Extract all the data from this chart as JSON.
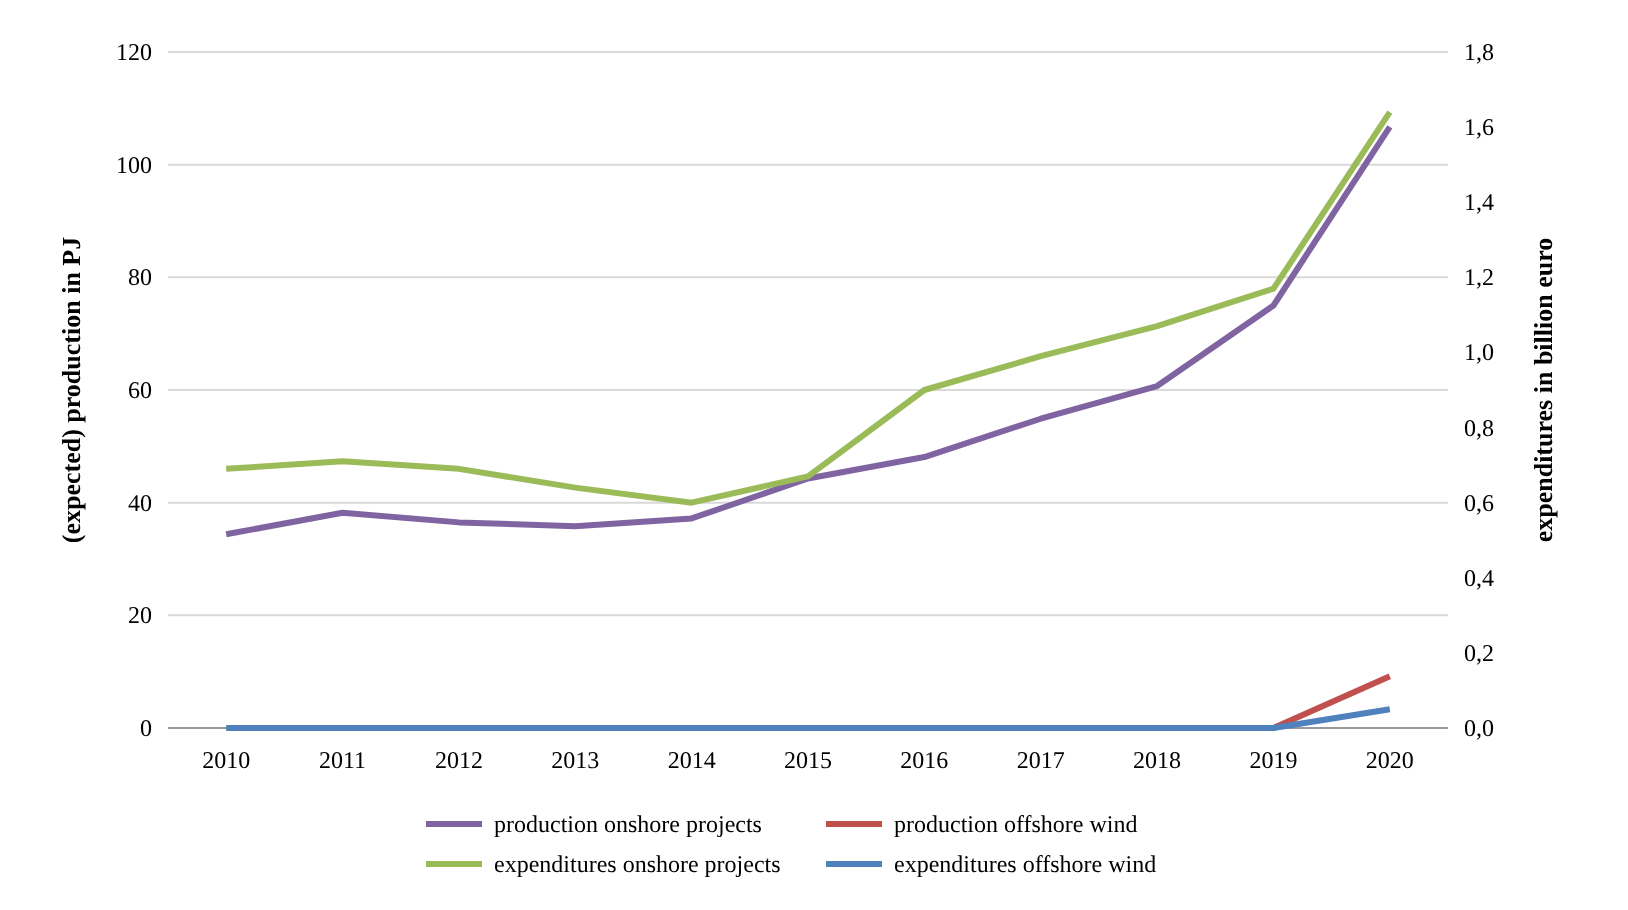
{
  "chart_data": {
    "type": "line",
    "ylabel": "(expected) production in PJ",
    "y2label": "expenditures in billion euro",
    "categories": [
      "2010",
      "2011",
      "2012",
      "2013",
      "2014",
      "2015",
      "2016",
      "2017",
      "2018",
      "2019",
      "2020"
    ],
    "series": [
      {
        "name": "production onshore projects",
        "color": "#8064a2",
        "values": [
          34.4,
          38.2,
          36.5,
          35.8,
          37.2,
          44.3,
          48.1,
          54.9,
          60.7,
          75,
          106.7
        ]
      },
      {
        "name": "production offshore wind",
        "color": "#c0504d",
        "values": [
          null,
          null,
          null,
          null,
          null,
          null,
          null,
          null,
          null,
          0,
          9.2
        ]
      },
      {
        "name": "expenditures onshore projects",
        "color": "#9bbb59",
        "axis": "y2",
        "values": [
          0.69,
          0.71,
          0.69,
          0.64,
          0.6,
          0.67,
          0.9,
          0.99,
          1.07,
          1.17,
          1.64
        ]
      },
      {
        "name": "expenditures offshore wind",
        "color": "#4f81bd",
        "axis": "y2",
        "values": [
          0,
          0,
          0,
          0,
          0,
          0,
          0,
          0,
          0,
          0,
          0.05
        ]
      }
    ],
    "ylim": [
      0,
      120
    ],
    "yticks": [
      0,
      20,
      40,
      60,
      80,
      100,
      120
    ],
    "y2lim": [
      0,
      1.8
    ],
    "y2ticks": [
      {
        "value": 0,
        "label": "0,0"
      },
      {
        "value": 0.2,
        "label": "0,2"
      },
      {
        "value": 0.4,
        "label": "0,4"
      },
      {
        "value": 0.6,
        "label": "0,6"
      },
      {
        "value": 0.8,
        "label": "0,8"
      },
      {
        "value": 1,
        "label": "1,0"
      },
      {
        "value": 1.2,
        "label": "1,2"
      },
      {
        "value": 1.4,
        "label": "1,4"
      },
      {
        "value": 1.6,
        "label": "1,6"
      },
      {
        "value": 1.8,
        "label": "1,8"
      }
    ],
    "grid": "y",
    "legend": "bottom",
    "line_style": "solid",
    "marker": "none"
  }
}
